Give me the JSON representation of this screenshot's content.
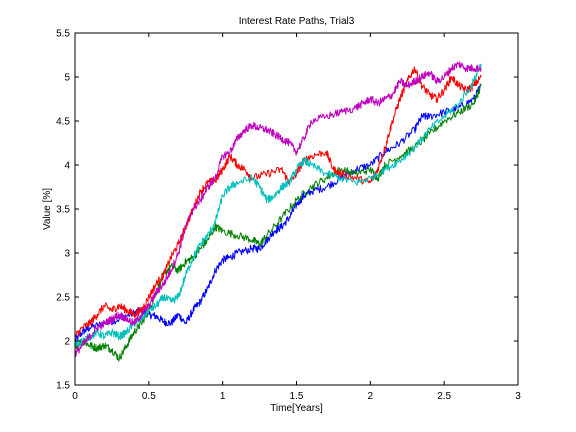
{
  "chart_data": {
    "type": "line",
    "title": "Interest Rate Paths, Trial3",
    "xlabel": "Time[Years]",
    "ylabel": "Value [%]",
    "xlim": [
      0,
      3
    ],
    "ylim": [
      1.5,
      5.5
    ],
    "xticks": [
      "0",
      "0.5",
      "1",
      "1.5",
      "2",
      "2.5",
      "3"
    ],
    "yticks": [
      "1.5",
      "2",
      "2.5",
      "3",
      "3.5",
      "4",
      "4.5",
      "5",
      "5.5"
    ],
    "grid": false,
    "series": [
      {
        "color": "#0000ff",
        "points": [
          [
            0,
            2.0
          ],
          [
            0.05,
            2.1
          ],
          [
            0.1,
            2.15
          ],
          [
            0.2,
            2.2
          ],
          [
            0.3,
            2.25
          ],
          [
            0.4,
            2.32
          ],
          [
            0.45,
            2.35
          ],
          [
            0.5,
            2.3
          ],
          [
            0.55,
            2.28
          ],
          [
            0.6,
            2.22
          ],
          [
            0.65,
            2.2
          ],
          [
            0.7,
            2.3
          ],
          [
            0.75,
            2.2
          ],
          [
            0.8,
            2.35
          ],
          [
            0.85,
            2.45
          ],
          [
            0.9,
            2.6
          ],
          [
            0.95,
            2.8
          ],
          [
            1.0,
            2.92
          ],
          [
            1.05,
            2.95
          ],
          [
            1.1,
            3.0
          ],
          [
            1.2,
            3.05
          ],
          [
            1.25,
            3.05
          ],
          [
            1.3,
            3.15
          ],
          [
            1.35,
            3.25
          ],
          [
            1.4,
            3.3
          ],
          [
            1.45,
            3.4
          ],
          [
            1.5,
            3.55
          ],
          [
            1.55,
            3.65
          ],
          [
            1.6,
            3.7
          ],
          [
            1.7,
            3.75
          ],
          [
            1.8,
            3.85
          ],
          [
            1.9,
            3.95
          ],
          [
            2.0,
            4.0
          ],
          [
            2.1,
            4.15
          ],
          [
            2.2,
            4.25
          ],
          [
            2.3,
            4.4
          ],
          [
            2.35,
            4.55
          ],
          [
            2.4,
            4.55
          ],
          [
            2.5,
            4.6
          ],
          [
            2.6,
            4.65
          ],
          [
            2.7,
            4.75
          ],
          [
            2.75,
            4.9
          ]
        ]
      },
      {
        "color": "#008000",
        "points": [
          [
            0,
            1.95
          ],
          [
            0.05,
            2.0
          ],
          [
            0.1,
            1.95
          ],
          [
            0.15,
            1.92
          ],
          [
            0.2,
            1.95
          ],
          [
            0.25,
            1.9
          ],
          [
            0.3,
            1.8
          ],
          [
            0.35,
            1.95
          ],
          [
            0.4,
            2.1
          ],
          [
            0.45,
            2.2
          ],
          [
            0.5,
            2.35
          ],
          [
            0.55,
            2.55
          ],
          [
            0.6,
            2.75
          ],
          [
            0.65,
            2.85
          ],
          [
            0.7,
            2.8
          ],
          [
            0.75,
            2.9
          ],
          [
            0.8,
            2.95
          ],
          [
            0.85,
            3.05
          ],
          [
            0.9,
            3.15
          ],
          [
            0.95,
            3.3
          ],
          [
            1.0,
            3.25
          ],
          [
            1.1,
            3.2
          ],
          [
            1.2,
            3.15
          ],
          [
            1.25,
            3.1
          ],
          [
            1.3,
            3.2
          ],
          [
            1.4,
            3.4
          ],
          [
            1.5,
            3.6
          ],
          [
            1.6,
            3.75
          ],
          [
            1.7,
            3.85
          ],
          [
            1.8,
            3.95
          ],
          [
            1.9,
            3.9
          ],
          [
            2.0,
            3.95
          ],
          [
            2.05,
            3.85
          ],
          [
            2.1,
            4.0
          ],
          [
            2.2,
            4.1
          ],
          [
            2.3,
            4.2
          ],
          [
            2.4,
            4.35
          ],
          [
            2.5,
            4.5
          ],
          [
            2.6,
            4.6
          ],
          [
            2.7,
            4.7
          ],
          [
            2.75,
            4.9
          ]
        ]
      },
      {
        "color": "#ff0000",
        "points": [
          [
            0,
            2.05
          ],
          [
            0.05,
            2.15
          ],
          [
            0.1,
            2.2
          ],
          [
            0.15,
            2.3
          ],
          [
            0.2,
            2.4
          ],
          [
            0.25,
            2.35
          ],
          [
            0.3,
            2.4
          ],
          [
            0.35,
            2.35
          ],
          [
            0.4,
            2.3
          ],
          [
            0.45,
            2.35
          ],
          [
            0.5,
            2.5
          ],
          [
            0.55,
            2.65
          ],
          [
            0.6,
            2.75
          ],
          [
            0.65,
            2.95
          ],
          [
            0.7,
            3.1
          ],
          [
            0.75,
            3.3
          ],
          [
            0.8,
            3.5
          ],
          [
            0.85,
            3.7
          ],
          [
            0.9,
            3.8
          ],
          [
            0.95,
            3.82
          ],
          [
            1.0,
            3.95
          ],
          [
            1.05,
            4.1
          ],
          [
            1.1,
            4.0
          ],
          [
            1.15,
            3.95
          ],
          [
            1.2,
            3.85
          ],
          [
            1.3,
            3.9
          ],
          [
            1.4,
            3.95
          ],
          [
            1.45,
            3.8
          ],
          [
            1.5,
            3.9
          ],
          [
            1.55,
            4.05
          ],
          [
            1.6,
            4.1
          ],
          [
            1.7,
            4.15
          ],
          [
            1.75,
            3.95
          ],
          [
            1.8,
            3.9
          ],
          [
            1.9,
            3.85
          ],
          [
            2.0,
            3.8
          ],
          [
            2.05,
            3.95
          ],
          [
            2.1,
            4.2
          ],
          [
            2.15,
            4.5
          ],
          [
            2.2,
            4.75
          ],
          [
            2.25,
            4.95
          ],
          [
            2.3,
            5.1
          ],
          [
            2.35,
            4.9
          ],
          [
            2.4,
            4.8
          ],
          [
            2.45,
            4.75
          ],
          [
            2.5,
            4.85
          ],
          [
            2.55,
            5.0
          ],
          [
            2.6,
            4.9
          ],
          [
            2.65,
            4.85
          ],
          [
            2.7,
            4.9
          ],
          [
            2.75,
            5.0
          ]
        ]
      },
      {
        "color": "#00bfbf",
        "points": [
          [
            0,
            1.95
          ],
          [
            0.05,
            2.0
          ],
          [
            0.1,
            2.05
          ],
          [
            0.15,
            2.1
          ],
          [
            0.2,
            2.05
          ],
          [
            0.25,
            2.1
          ],
          [
            0.3,
            2.05
          ],
          [
            0.35,
            2.1
          ],
          [
            0.4,
            2.2
          ],
          [
            0.45,
            2.25
          ],
          [
            0.5,
            2.35
          ],
          [
            0.55,
            2.4
          ],
          [
            0.6,
            2.5
          ],
          [
            0.65,
            2.45
          ],
          [
            0.7,
            2.5
          ],
          [
            0.75,
            2.75
          ],
          [
            0.8,
            2.95
          ],
          [
            0.85,
            3.1
          ],
          [
            0.9,
            3.2
          ],
          [
            0.95,
            3.35
          ],
          [
            1.0,
            3.65
          ],
          [
            1.05,
            3.75
          ],
          [
            1.1,
            3.8
          ],
          [
            1.2,
            3.85
          ],
          [
            1.25,
            3.75
          ],
          [
            1.3,
            3.6
          ],
          [
            1.35,
            3.65
          ],
          [
            1.4,
            3.75
          ],
          [
            1.45,
            3.8
          ],
          [
            1.5,
            3.95
          ],
          [
            1.55,
            4.05
          ],
          [
            1.6,
            4.0
          ],
          [
            1.7,
            3.9
          ],
          [
            1.8,
            3.85
          ],
          [
            1.9,
            3.8
          ],
          [
            2.0,
            3.85
          ],
          [
            2.1,
            3.95
          ],
          [
            2.2,
            4.05
          ],
          [
            2.3,
            4.2
          ],
          [
            2.4,
            4.4
          ],
          [
            2.5,
            4.55
          ],
          [
            2.6,
            4.7
          ],
          [
            2.7,
            4.95
          ],
          [
            2.75,
            5.15
          ]
        ]
      },
      {
        "color": "#bf00bf",
        "points": [
          [
            0,
            1.85
          ],
          [
            0.05,
            1.95
          ],
          [
            0.1,
            2.05
          ],
          [
            0.15,
            2.15
          ],
          [
            0.2,
            2.2
          ],
          [
            0.25,
            2.25
          ],
          [
            0.3,
            2.3
          ],
          [
            0.35,
            2.25
          ],
          [
            0.4,
            2.2
          ],
          [
            0.45,
            2.3
          ],
          [
            0.5,
            2.4
          ],
          [
            0.55,
            2.55
          ],
          [
            0.6,
            2.65
          ],
          [
            0.65,
            2.8
          ],
          [
            0.7,
            3.0
          ],
          [
            0.75,
            3.3
          ],
          [
            0.8,
            3.5
          ],
          [
            0.85,
            3.6
          ],
          [
            0.9,
            3.75
          ],
          [
            0.95,
            3.85
          ],
          [
            1.0,
            4.1
          ],
          [
            1.05,
            4.15
          ],
          [
            1.1,
            4.3
          ],
          [
            1.15,
            4.4
          ],
          [
            1.2,
            4.45
          ],
          [
            1.25,
            4.42
          ],
          [
            1.3,
            4.4
          ],
          [
            1.35,
            4.35
          ],
          [
            1.4,
            4.3
          ],
          [
            1.45,
            4.25
          ],
          [
            1.5,
            4.15
          ],
          [
            1.55,
            4.3
          ],
          [
            1.6,
            4.5
          ],
          [
            1.7,
            4.55
          ],
          [
            1.8,
            4.6
          ],
          [
            1.9,
            4.65
          ],
          [
            1.95,
            4.7
          ],
          [
            2.0,
            4.75
          ],
          [
            2.05,
            4.7
          ],
          [
            2.1,
            4.75
          ],
          [
            2.15,
            4.8
          ],
          [
            2.2,
            4.95
          ],
          [
            2.25,
            4.9
          ],
          [
            2.3,
            4.95
          ],
          [
            2.35,
            5.0
          ],
          [
            2.4,
            5.05
          ],
          [
            2.45,
            4.95
          ],
          [
            2.5,
            5.0
          ],
          [
            2.55,
            5.1
          ],
          [
            2.6,
            5.15
          ],
          [
            2.65,
            5.1
          ],
          [
            2.7,
            5.1
          ],
          [
            2.75,
            5.1
          ]
        ]
      }
    ]
  }
}
